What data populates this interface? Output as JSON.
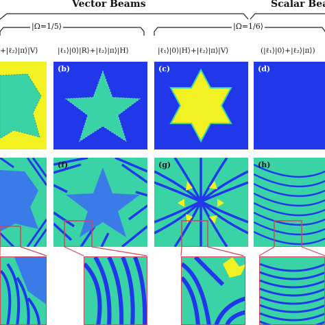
{
  "header": {
    "vector_beams": "Vector Beams",
    "scalar_beams": "Scalar Beam",
    "omega_left": "|Ω=1/5⟩",
    "omega_right": "|Ω=1/6⟩"
  },
  "panels": [
    {
      "tag": "",
      "label": "+|ℓ₂⟩|π⟩|V⟩"
    },
    {
      "tag": "(b)",
      "label": "|ℓ₁⟩|0⟩|R⟩+|ℓ₂⟩|π⟩|H⟩"
    },
    {
      "tag": "(c)",
      "label": "|ℓ₁⟩|0⟩|H⟩+|ℓ₂⟩|π⟩|V⟩"
    },
    {
      "tag": "(d)",
      "label": "(|ℓ₁⟩|0⟩+|ℓ₂⟩|π⟩)"
    }
  ],
  "row2_tags": [
    "",
    "(f)",
    "(g)",
    "(h)"
  ],
  "colors": {
    "blue": "#2137ea",
    "yellow": "#f2f223",
    "teal": "#39d3a6",
    "mid_blue": "#3a7be8",
    "zoom_box": "#d0445a"
  }
}
